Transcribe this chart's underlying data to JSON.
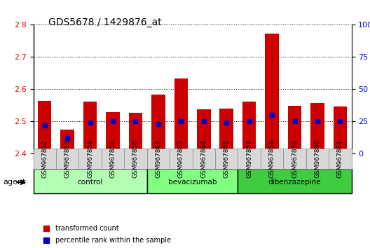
{
  "title": "GDS5678 / 1429876_at",
  "samples": [
    "GSM967852",
    "GSM967853",
    "GSM967854",
    "GSM967855",
    "GSM967856",
    "GSM967862",
    "GSM967863",
    "GSM967864",
    "GSM967865",
    "GSM967857",
    "GSM967858",
    "GSM967859",
    "GSM967860",
    "GSM967861"
  ],
  "transformed_count": [
    2.565,
    2.475,
    2.562,
    2.53,
    2.526,
    2.583,
    2.634,
    2.538,
    2.54,
    2.562,
    2.773,
    2.548,
    2.557,
    2.546
  ],
  "percentile_rank": [
    22,
    12,
    24,
    25,
    25,
    23,
    25,
    25,
    24,
    25,
    30,
    25,
    25,
    25
  ],
  "groups": [
    {
      "name": "control",
      "indices": [
        0,
        1,
        2,
        3,
        4
      ],
      "color": "#b3ffb3"
    },
    {
      "name": "bevacizumab",
      "indices": [
        5,
        6,
        7,
        8
      ],
      "color": "#80ff80"
    },
    {
      "name": "dibenzazepine",
      "indices": [
        9,
        10,
        11,
        12,
        13
      ],
      "color": "#40cc40"
    }
  ],
  "ylim_left": [
    2.4,
    2.8
  ],
  "ylim_right": [
    0,
    100
  ],
  "yticks_left": [
    2.4,
    2.5,
    2.6,
    2.7,
    2.8
  ],
  "yticks_right": [
    0,
    25,
    50,
    75,
    100
  ],
  "bar_color": "#cc0000",
  "dot_color": "#0000cc",
  "background_color": "#ffffff",
  "grid_color": "#000000",
  "agent_label": "agent",
  "legend_items": [
    "transformed count",
    "percentile rank within the sample"
  ]
}
